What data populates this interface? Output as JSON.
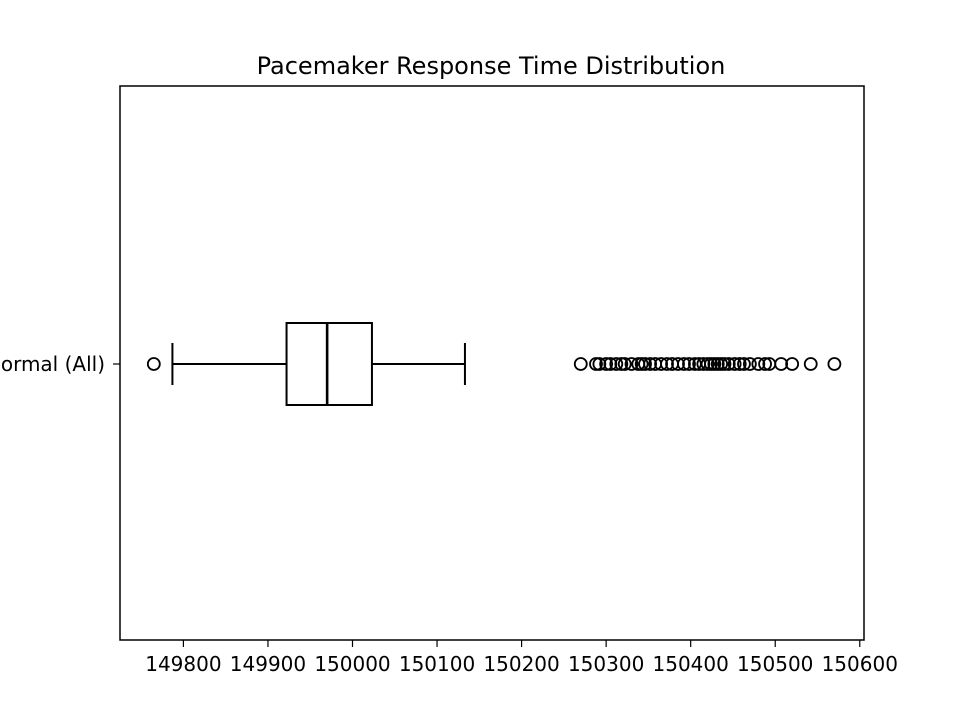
{
  "chart_data": {
    "type": "boxplot",
    "orientation": "horizontal",
    "title": "Pacemaker Response Time Distribution",
    "xlabel": "",
    "ylabel": "",
    "xlim": [
      149725,
      150605
    ],
    "xticks": [
      149800,
      149900,
      150000,
      150100,
      150200,
      150300,
      150400,
      150500,
      150600
    ],
    "grid": false,
    "box": {
      "label": "Normal (All)",
      "whisker_low": 149787,
      "q1": 149922,
      "median": 149970,
      "q3": 150023,
      "whisker_high": 150133,
      "outliers_low": [
        149765
      ],
      "outliers_high": [
        150270,
        150288,
        150292,
        150300,
        150305,
        150312,
        150318,
        150322,
        150330,
        150338,
        150342,
        150346,
        150352,
        150358,
        150365,
        150372,
        150378,
        150385,
        150392,
        150398,
        150405,
        150410,
        150415,
        150420,
        150424,
        150428,
        150432,
        150436,
        150440,
        150445,
        150452,
        150458,
        150463,
        150470,
        150480,
        150488,
        150493,
        150507,
        150520,
        150542,
        150570
      ]
    }
  }
}
